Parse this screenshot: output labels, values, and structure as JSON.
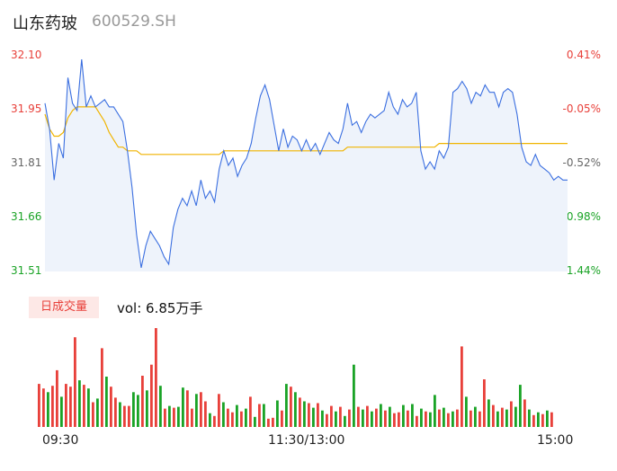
{
  "header": {
    "name": "山东药玻",
    "code": "600529.SH"
  },
  "colors": {
    "up": "#e8403a",
    "down": "#1aa326",
    "price_line": "#3b6fe0",
    "avg_line": "#f0b400",
    "fill": "#eef3fb",
    "neutral": "#666666"
  },
  "chart_data": [
    {
      "type": "line",
      "title": "",
      "x_ticks": [
        "09:30",
        "11:30/13:00",
        "15:00"
      ],
      "y_left_ticks": [
        "32.10",
        "31.95",
        "31.81",
        "31.66",
        "31.51"
      ],
      "y_right_ticks": [
        "0.41%",
        "-0.05%",
        "-0.52%",
        "-0.98%",
        "-1.44%"
      ],
      "ylim": [
        31.51,
        32.1
      ],
      "series": [
        {
          "values": [
            31.97,
            31.9,
            31.76,
            31.86,
            31.82,
            32.04,
            31.97,
            31.95,
            32.09,
            31.96,
            31.99,
            31.96,
            31.97,
            31.98,
            31.96,
            31.96,
            31.94,
            31.92,
            31.84,
            31.74,
            31.61,
            31.52,
            31.58,
            31.62,
            31.6,
            31.58,
            31.55,
            31.53,
            31.63,
            31.68,
            31.71,
            31.69,
            31.73,
            31.69,
            31.76,
            31.71,
            31.73,
            31.7,
            31.79,
            31.84,
            31.8,
            31.82,
            31.77,
            31.8,
            31.82,
            31.86,
            31.93,
            31.99,
            32.02,
            31.98,
            31.91,
            31.84,
            31.9,
            31.85,
            31.88,
            31.87,
            31.84,
            31.87,
            31.84,
            31.86,
            31.83,
            31.86,
            31.89,
            31.87,
            31.86,
            31.9,
            31.97,
            31.91,
            31.92,
            31.89,
            31.92,
            31.94,
            31.93,
            31.94,
            31.95,
            32.0,
            31.96,
            31.94,
            31.98,
            31.96,
            31.97,
            32.0,
            31.84,
            31.79,
            31.81,
            31.79,
            31.84,
            31.82,
            31.85,
            32.0,
            32.01,
            32.03,
            32.01,
            31.97,
            32.0,
            31.99,
            32.02,
            32.0,
            32.0,
            31.96,
            32.0,
            32.01,
            32.0,
            31.94,
            31.85,
            31.81,
            31.8,
            31.83,
            31.8,
            31.79,
            31.78,
            31.76,
            31.77,
            31.76,
            31.76
          ],
          "avg_values": [
            31.94,
            31.9,
            31.88,
            31.88,
            31.89,
            31.93,
            31.95,
            31.96,
            31.96,
            31.96,
            31.96,
            31.96,
            31.94,
            31.92,
            31.89,
            31.87,
            31.85,
            31.85,
            31.84,
            31.84,
            31.84,
            31.83,
            31.83,
            31.83,
            31.83,
            31.83,
            31.83,
            31.83,
            31.83,
            31.83,
            31.83,
            31.83,
            31.83,
            31.83,
            31.83,
            31.83,
            31.83,
            31.83,
            31.83,
            31.84,
            31.84,
            31.84,
            31.84,
            31.84,
            31.84,
            31.84,
            31.84,
            31.84,
            31.84,
            31.84,
            31.84,
            31.84,
            31.84,
            31.84,
            31.84,
            31.84,
            31.84,
            31.84,
            31.84,
            31.84,
            31.84,
            31.84,
            31.84,
            31.84,
            31.84,
            31.84,
            31.85,
            31.85,
            31.85,
            31.85,
            31.85,
            31.85,
            31.85,
            31.85,
            31.85,
            31.85,
            31.85,
            31.85,
            31.85,
            31.85,
            31.85,
            31.85,
            31.85,
            31.85,
            31.85,
            31.85,
            31.86,
            31.86,
            31.86,
            31.86,
            31.86,
            31.86,
            31.86,
            31.86,
            31.86,
            31.86,
            31.86,
            31.86,
            31.86,
            31.86,
            31.86,
            31.86,
            31.86,
            31.86,
            31.86,
            31.86,
            31.86,
            31.86,
            31.86,
            31.86,
            31.86,
            31.86,
            31.86,
            31.86,
            31.86
          ]
        }
      ]
    },
    {
      "type": "bar",
      "title": "日成交量",
      "volume_label": "vol: 6.85万手",
      "bars": [
        {
          "v": 47,
          "c": "up"
        },
        {
          "v": 42,
          "c": "up"
        },
        {
          "v": 38,
          "c": "down"
        },
        {
          "v": 45,
          "c": "up"
        },
        {
          "v": 62,
          "c": "up"
        },
        {
          "v": 33,
          "c": "down"
        },
        {
          "v": 47,
          "c": "up"
        },
        {
          "v": 44,
          "c": "up"
        },
        {
          "v": 98,
          "c": "up"
        },
        {
          "v": 51,
          "c": "down"
        },
        {
          "v": 46,
          "c": "up"
        },
        {
          "v": 42,
          "c": "down"
        },
        {
          "v": 27,
          "c": "up"
        },
        {
          "v": 31,
          "c": "down"
        },
        {
          "v": 86,
          "c": "up"
        },
        {
          "v": 55,
          "c": "down"
        },
        {
          "v": 44,
          "c": "up"
        },
        {
          "v": 32,
          "c": "up"
        },
        {
          "v": 27,
          "c": "down"
        },
        {
          "v": 23,
          "c": "up"
        },
        {
          "v": 23,
          "c": "up"
        },
        {
          "v": 38,
          "c": "down"
        },
        {
          "v": 35,
          "c": "down"
        },
        {
          "v": 56,
          "c": "up"
        },
        {
          "v": 40,
          "c": "down"
        },
        {
          "v": 68,
          "c": "up"
        },
        {
          "v": 108,
          "c": "up"
        },
        {
          "v": 45,
          "c": "down"
        },
        {
          "v": 20,
          "c": "up"
        },
        {
          "v": 23,
          "c": "down"
        },
        {
          "v": 21,
          "c": "up"
        },
        {
          "v": 22,
          "c": "down"
        },
        {
          "v": 43,
          "c": "down"
        },
        {
          "v": 40,
          "c": "up"
        },
        {
          "v": 20,
          "c": "up"
        },
        {
          "v": 36,
          "c": "down"
        },
        {
          "v": 38,
          "c": "up"
        },
        {
          "v": 28,
          "c": "up"
        },
        {
          "v": 15,
          "c": "down"
        },
        {
          "v": 12,
          "c": "up"
        },
        {
          "v": 36,
          "c": "up"
        },
        {
          "v": 27,
          "c": "down"
        },
        {
          "v": 20,
          "c": "up"
        },
        {
          "v": 16,
          "c": "up"
        },
        {
          "v": 24,
          "c": "down"
        },
        {
          "v": 17,
          "c": "up"
        },
        {
          "v": 20,
          "c": "down"
        },
        {
          "v": 33,
          "c": "up"
        },
        {
          "v": 11,
          "c": "down"
        },
        {
          "v": 25,
          "c": "up"
        },
        {
          "v": 25,
          "c": "down"
        },
        {
          "v": 9,
          "c": "up"
        },
        {
          "v": 10,
          "c": "up"
        },
        {
          "v": 29,
          "c": "down"
        },
        {
          "v": 18,
          "c": "up"
        },
        {
          "v": 47,
          "c": "down"
        },
        {
          "v": 44,
          "c": "up"
        },
        {
          "v": 38,
          "c": "down"
        },
        {
          "v": 32,
          "c": "up"
        },
        {
          "v": 28,
          "c": "down"
        },
        {
          "v": 26,
          "c": "up"
        },
        {
          "v": 21,
          "c": "down"
        },
        {
          "v": 26,
          "c": "up"
        },
        {
          "v": 18,
          "c": "down"
        },
        {
          "v": 14,
          "c": "up"
        },
        {
          "v": 23,
          "c": "up"
        },
        {
          "v": 17,
          "c": "down"
        },
        {
          "v": 22,
          "c": "up"
        },
        {
          "v": 12,
          "c": "down"
        },
        {
          "v": 19,
          "c": "up"
        },
        {
          "v": 68,
          "c": "down"
        },
        {
          "v": 22,
          "c": "up"
        },
        {
          "v": 19,
          "c": "down"
        },
        {
          "v": 23,
          "c": "up"
        },
        {
          "v": 17,
          "c": "down"
        },
        {
          "v": 20,
          "c": "up"
        },
        {
          "v": 25,
          "c": "down"
        },
        {
          "v": 18,
          "c": "up"
        },
        {
          "v": 22,
          "c": "down"
        },
        {
          "v": 15,
          "c": "up"
        },
        {
          "v": 16,
          "c": "up"
        },
        {
          "v": 24,
          "c": "down"
        },
        {
          "v": 18,
          "c": "up"
        },
        {
          "v": 25,
          "c": "down"
        },
        {
          "v": 12,
          "c": "up"
        },
        {
          "v": 20,
          "c": "down"
        },
        {
          "v": 17,
          "c": "up"
        },
        {
          "v": 16,
          "c": "down"
        },
        {
          "v": 35,
          "c": "down"
        },
        {
          "v": 19,
          "c": "up"
        },
        {
          "v": 21,
          "c": "down"
        },
        {
          "v": 15,
          "c": "up"
        },
        {
          "v": 17,
          "c": "down"
        },
        {
          "v": 19,
          "c": "up"
        },
        {
          "v": 88,
          "c": "up"
        },
        {
          "v": 33,
          "c": "down"
        },
        {
          "v": 18,
          "c": "up"
        },
        {
          "v": 22,
          "c": "down"
        },
        {
          "v": 17,
          "c": "up"
        },
        {
          "v": 52,
          "c": "up"
        },
        {
          "v": 30,
          "c": "down"
        },
        {
          "v": 24,
          "c": "up"
        },
        {
          "v": 17,
          "c": "down"
        },
        {
          "v": 21,
          "c": "up"
        },
        {
          "v": 19,
          "c": "down"
        },
        {
          "v": 28,
          "c": "up"
        },
        {
          "v": 22,
          "c": "down"
        },
        {
          "v": 46,
          "c": "down"
        },
        {
          "v": 30,
          "c": "up"
        },
        {
          "v": 19,
          "c": "down"
        },
        {
          "v": 13,
          "c": "up"
        },
        {
          "v": 16,
          "c": "down"
        },
        {
          "v": 14,
          "c": "up"
        },
        {
          "v": 18,
          "c": "down"
        },
        {
          "v": 16,
          "c": "up"
        }
      ]
    }
  ]
}
